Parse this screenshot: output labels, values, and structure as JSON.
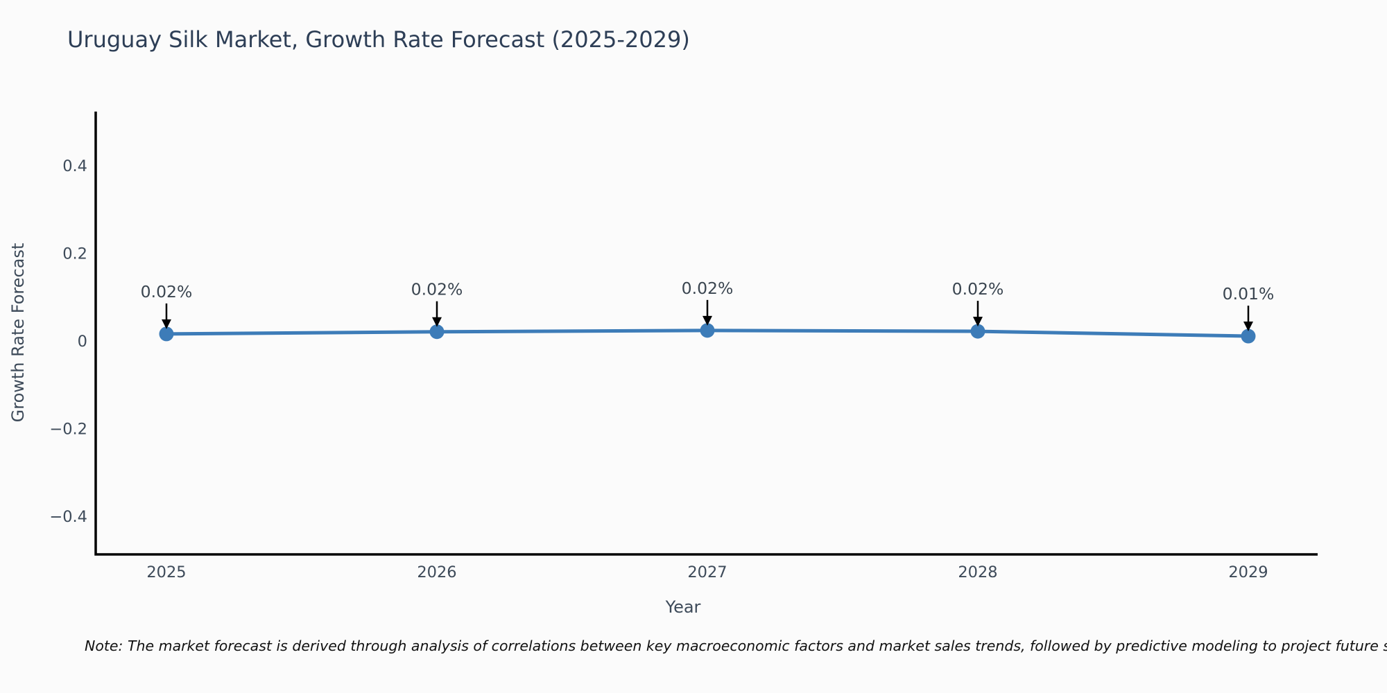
{
  "note": "Note: The market forecast is derived through analysis of correlations between key macroeconomic factors and market sales trends, followed by predictive modeling to project future sa",
  "chart_data": {
    "type": "line",
    "title": "Uruguay Silk Market, Growth Rate Forecast (2025-2029)",
    "xlabel": "Year",
    "ylabel": "Growth Rate Forecast",
    "x": [
      2025,
      2026,
      2027,
      2028,
      2029
    ],
    "values": [
      0.02,
      0.02,
      0.02,
      0.02,
      0.01
    ],
    "values_plotted": [
      0.016,
      0.021,
      0.024,
      0.022,
      0.011
    ],
    "point_labels": [
      "0.02%",
      "0.02%",
      "0.02%",
      "0.02%",
      "0.01%"
    ],
    "xtick_labels": [
      "2025",
      "2026",
      "2027",
      "2028",
      "2029"
    ],
    "ytick_values": [
      0.4,
      0.2,
      0,
      -0.2,
      -0.4
    ],
    "ytick_labels": [
      "0.4",
      "0.2",
      "0",
      "−0.2",
      "−0.4"
    ],
    "ylim": [
      -0.49,
      0.52
    ],
    "xlim": [
      2024.73,
      2029.26
    ],
    "grid": false,
    "legend": false,
    "line_color": "#3d7cb8",
    "marker_color": "#3d7cb8",
    "arrow_color": "#000000",
    "axis_color": "#000000"
  }
}
